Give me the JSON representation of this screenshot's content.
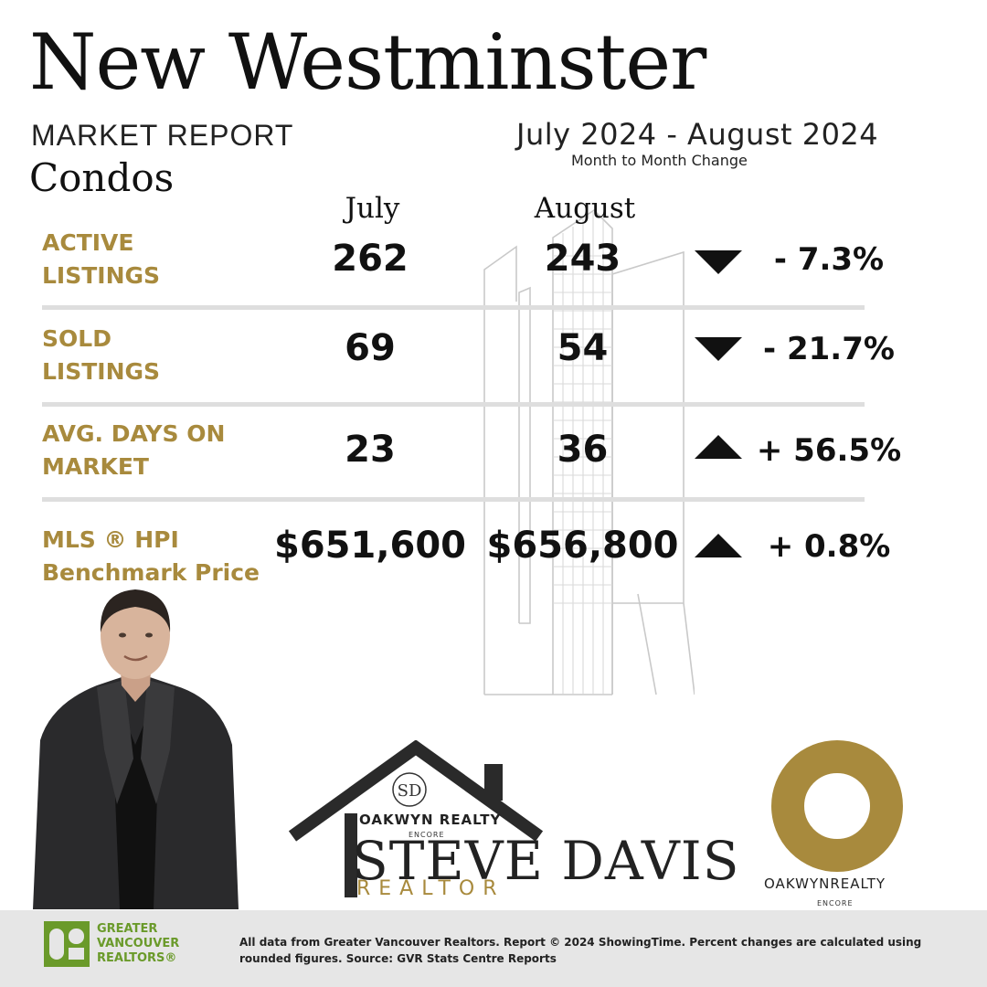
{
  "header": {
    "city": "New Westminster",
    "report": "MARKET REPORT",
    "category": "Condos",
    "period": "July 2024 - August 2024",
    "period_sub": "Month to Month Change"
  },
  "columns": {
    "july": "July",
    "august": "August"
  },
  "metrics": [
    {
      "label_line1": "ACTIVE",
      "label_line2": "LISTINGS",
      "july": "262",
      "august": "243",
      "direction": "down",
      "change": "- 7.3%"
    },
    {
      "label_line1": "SOLD",
      "label_line2": "LISTINGS",
      "july": "69",
      "august": "54",
      "direction": "down",
      "change": "- 21.7%"
    },
    {
      "label_line1": "AVG. DAYS ON",
      "label_line2": "MARKET",
      "july": "23",
      "august": "36",
      "direction": "up",
      "change": "+ 56.5%"
    },
    {
      "label_line1": "MLS ®  HPI",
      "label_line2": "Benchmark Price",
      "july": "$651,600",
      "august": "$656,800",
      "direction": "up",
      "change": "+ 0.8%"
    }
  ],
  "brand": {
    "monogram": "SD",
    "realty": "OAKWYN REALTY",
    "encore": "ENCORE",
    "name": "STEVE DAVIS",
    "title": "REALTOR"
  },
  "oakwyn_logo": {
    "realty": "OAKWYNREALTY",
    "encore": "ENCORE"
  },
  "footer": {
    "gvr_line1": "GREATER",
    "gvr_line2": "VANCOUVER",
    "gvr_line3": "REALTORS®",
    "note": "All data from Greater Vancouver Realtors. Report © 2024 ShowingTime. Percent changes are calculated using rounded figures. Source: GVR Stats Centre Reports"
  },
  "colors": {
    "gold": "#a88a3d",
    "divider": "#dedede",
    "footer_bg": "#e6e6e6",
    "gvr_green": "#6a9a2a"
  }
}
